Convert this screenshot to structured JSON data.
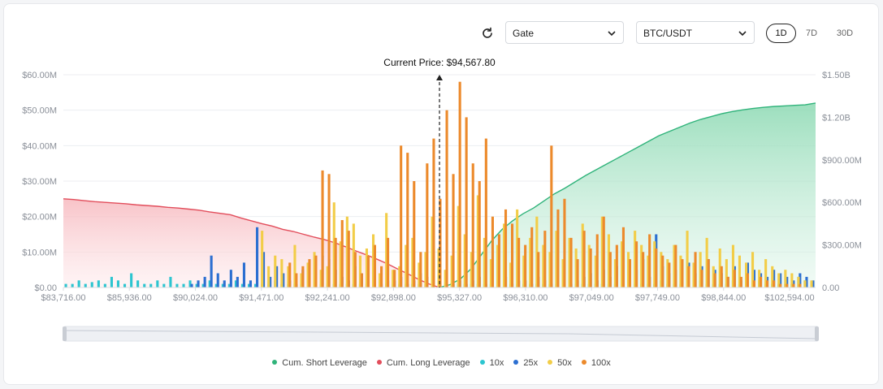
{
  "toolbar": {
    "exchange": "Gate",
    "pair": "BTC/USDT",
    "timeframes": [
      "1D",
      "7D",
      "30D"
    ],
    "active_timeframe": "1D"
  },
  "chart_data": {
    "type": "bar",
    "annotation": "Current Price: $94,567.80",
    "current_price": 94567.8,
    "x_tick_labels": [
      "$83,716.00",
      "$85,936.00",
      "$90,024.00",
      "$91,471.00",
      "$92,241.00",
      "$92,898.00",
      "$95,327.00",
      "$96,310.00",
      "$97,049.00",
      "$97,749.00",
      "$98,844.00",
      "$102,594.00"
    ],
    "y_left": {
      "ticks": [
        "$0.00",
        "$10.00M",
        "$20.00M",
        "$30.00M",
        "$40.00M",
        "$50.00M",
        "$60.00M"
      ],
      "ylim": [
        0,
        60000000
      ]
    },
    "y_right": {
      "ticks": [
        "0.00",
        "$300.00M",
        "$600.00M",
        "$900.00M",
        "$1.20B",
        "$1.50B"
      ],
      "ylim": [
        0,
        1500000000
      ]
    },
    "legend": [
      {
        "name": "Cum. Short Leverage",
        "color": "#2fb37a"
      },
      {
        "name": "Cum. Long Leverage",
        "color": "#e24d5b"
      },
      {
        "name": "10x",
        "color": "#2cc5d0"
      },
      {
        "name": "25x",
        "color": "#2c6fd1"
      },
      {
        "name": "50x",
        "color": "#f2cd48"
      },
      {
        "name": "100x",
        "color": "#ec8a2c"
      }
    ],
    "cum_long_series_m": [
      25,
      24.8,
      24.5,
      24.2,
      24,
      23.8,
      23.6,
      23.3,
      23.1,
      22.9,
      22.6,
      22.4,
      22.1,
      21.8,
      21.3,
      20.9,
      20.5,
      19.6,
      18.8,
      18,
      17.3,
      16.4,
      15.8,
      15,
      14.2,
      13.5,
      12.6,
      11.5,
      10.3,
      9.2,
      8,
      6.7,
      5.2,
      3.8,
      2.3,
      1,
      0
    ],
    "cum_short_series_m": [
      0,
      20,
      60,
      130,
      230,
      330,
      410,
      470,
      520,
      560,
      610,
      660,
      700,
      745,
      790,
      830,
      870,
      910,
      950,
      990,
      1030,
      1070,
      1100,
      1130,
      1160,
      1185,
      1205,
      1225,
      1240,
      1252,
      1262,
      1270,
      1276,
      1280,
      1284,
      1288,
      1300
    ],
    "bars": {
      "prices": [
        83716,
        83936,
        84156,
        84376,
        84596,
        84816,
        85036,
        85256,
        85476,
        85696,
        85936,
        86346,
        86756,
        87166,
        87576,
        87986,
        88396,
        88806,
        89216,
        89626,
        90024,
        90169,
        90314,
        90459,
        90604,
        90749,
        90894,
        91039,
        91184,
        91329,
        91471,
        91548,
        91625,
        91702,
        91779,
        91856,
        91933,
        92010,
        92087,
        92164,
        92241,
        92307,
        92373,
        92439,
        92505,
        92571,
        92637,
        92703,
        92769,
        92835,
        92898,
        93141,
        93384,
        93627,
        93870,
        94113,
        94356,
        94599,
        94842,
        95085,
        95327,
        95425,
        95523,
        95621,
        95719,
        95817,
        95915,
        96013,
        96111,
        96209,
        96310,
        96384,
        96458,
        96532,
        96606,
        96680,
        96754,
        96828,
        96902,
        96976,
        97049,
        97119,
        97189,
        97259,
        97329,
        97399,
        97469,
        97539,
        97609,
        97679,
        97749,
        97859,
        97969,
        98079,
        98189,
        98299,
        98409,
        98519,
        98629,
        98739,
        98844,
        99219,
        99594,
        99969,
        100344,
        100719,
        101094,
        101469,
        101844,
        102219,
        102594,
        102900,
        103200,
        103500,
        103800
      ],
      "short_side_start_index": 57,
      "series": [
        {
          "name": "10x",
          "values": [
            1,
            1,
            2,
            1,
            1.5,
            2,
            1,
            3,
            2,
            1,
            4,
            2,
            1,
            1,
            2,
            1,
            3,
            1,
            1,
            2,
            1,
            1,
            2,
            1,
            1,
            1,
            2,
            1,
            1,
            1,
            1,
            1,
            2,
            1,
            1,
            1,
            1,
            1,
            1,
            1,
            1,
            1,
            1,
            1,
            1,
            1,
            1,
            1,
            1,
            1,
            1,
            1,
            1,
            1,
            1,
            1,
            1,
            1,
            1,
            1,
            1,
            1,
            1,
            1,
            1,
            1,
            1,
            1,
            1,
            1,
            1,
            1,
            1,
            1,
            1,
            1,
            1,
            1,
            1,
            1,
            1,
            1,
            1,
            1,
            1,
            1,
            1,
            1,
            1,
            1,
            1,
            2,
            1,
            1,
            1,
            1,
            1,
            2,
            1,
            1,
            1,
            1,
            2,
            1,
            1,
            1,
            2,
            1,
            1,
            1,
            1,
            1,
            3,
            2,
            1
          ]
        },
        {
          "name": "25x",
          "values": [
            0,
            0,
            0,
            0,
            0,
            0,
            0,
            0,
            0,
            0,
            0,
            0,
            0,
            0,
            0,
            0,
            0,
            0,
            0,
            1,
            2,
            3,
            9,
            4,
            2,
            5,
            3,
            7,
            2,
            17,
            10,
            3,
            6,
            4,
            2,
            1,
            5,
            3,
            7,
            9,
            8,
            5,
            3,
            2,
            6,
            4,
            2,
            3,
            1,
            2,
            2,
            3,
            1,
            2,
            4,
            3,
            2,
            3,
            1,
            1,
            2,
            1,
            2,
            3,
            1,
            2,
            1,
            3,
            1,
            2,
            2,
            1,
            3,
            2,
            1,
            3,
            2,
            1,
            2,
            3,
            4,
            2,
            5,
            3,
            6,
            4,
            7,
            5,
            8,
            3,
            15,
            6,
            4,
            5,
            3,
            7,
            4,
            6,
            8,
            5,
            4,
            3,
            6,
            2,
            7,
            5,
            4,
            3,
            5,
            4,
            3,
            2,
            4,
            3,
            2
          ]
        },
        {
          "name": "50x",
          "values": [
            0,
            0,
            0,
            0,
            0,
            0,
            0,
            0,
            0,
            0,
            0,
            0,
            0,
            0,
            0,
            0,
            0,
            0,
            0,
            0,
            0,
            0,
            0,
            0,
            0,
            0,
            0,
            0,
            0,
            0,
            16,
            6,
            9,
            8,
            6,
            12,
            4,
            7,
            10,
            5,
            6,
            24,
            13,
            20,
            18,
            9,
            11,
            15,
            4,
            21,
            5,
            6,
            12,
            14,
            7,
            10,
            20,
            11,
            5,
            9,
            23,
            15,
            10,
            26,
            14,
            8,
            12,
            18,
            7,
            22,
            9,
            14,
            20,
            12,
            10,
            16,
            8,
            14,
            11,
            18,
            12,
            9,
            20,
            15,
            8,
            13,
            10,
            16,
            12,
            9,
            13,
            10,
            8,
            12,
            9,
            16,
            7,
            10,
            14,
            6,
            11,
            8,
            12,
            9,
            7,
            10,
            5,
            8,
            6,
            4,
            5,
            4,
            3,
            2,
            2
          ]
        },
        {
          "name": "100x",
          "values": [
            0,
            0,
            0,
            0,
            0,
            0,
            0,
            0,
            0,
            0,
            0,
            0,
            0,
            0,
            0,
            0,
            0,
            0,
            0,
            0,
            0,
            0,
            0,
            0,
            0,
            0,
            0,
            0,
            0,
            0,
            0,
            0,
            0,
            0,
            7,
            4,
            6,
            8,
            9,
            33,
            32,
            14,
            19,
            16,
            10,
            4,
            9,
            12,
            6,
            14,
            5,
            40,
            38,
            30,
            10,
            35,
            42,
            25,
            50,
            32,
            58,
            48,
            35,
            30,
            42,
            20,
            15,
            22,
            18,
            14,
            12,
            17,
            10,
            16,
            40,
            22,
            25,
            14,
            8,
            16,
            11,
            15,
            20,
            10,
            12,
            17,
            8,
            13,
            10,
            15,
            11,
            9,
            7,
            12,
            8,
            6,
            10,
            5,
            8,
            4,
            6,
            3,
            5,
            3,
            4,
            2,
            3,
            2,
            2,
            1,
            1,
            1,
            1,
            0,
            0
          ]
        }
      ]
    }
  }
}
